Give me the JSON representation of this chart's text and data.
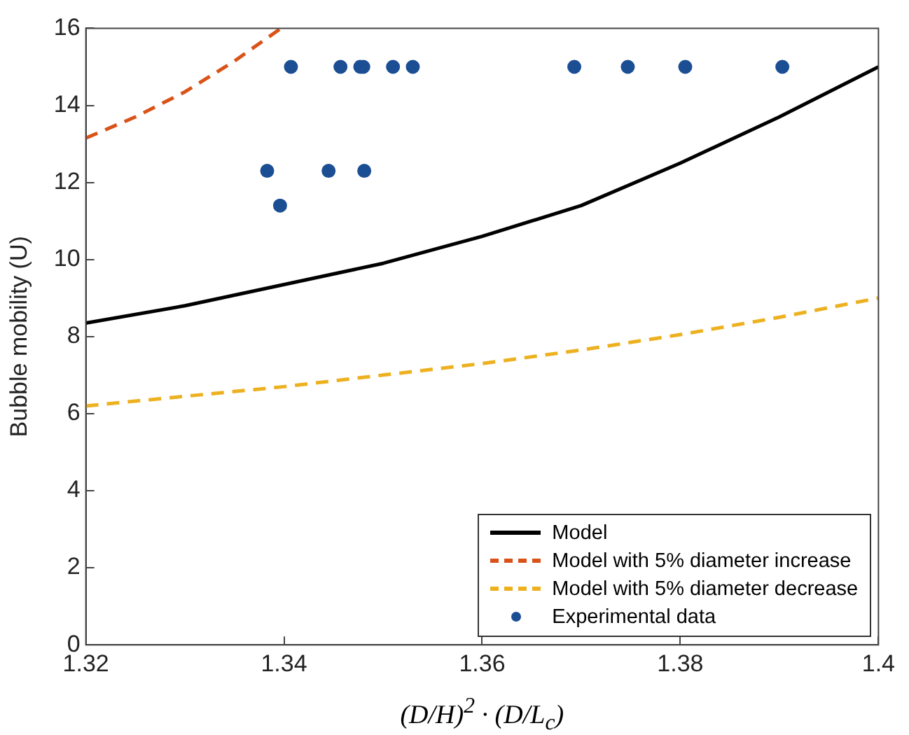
{
  "chart_data": {
    "type": "line",
    "xlabel": "(D/H)$^{2}$ · (D/L$_{c}$)",
    "ylabel": "Bubble mobility (U)",
    "xlim": [
      1.32,
      1.4
    ],
    "xticks": [
      1.32,
      1.34,
      1.36,
      1.38,
      {
        "value": 1.4,
        "label": "1.4"
      }
    ],
    "ylim": [
      0,
      16
    ],
    "yticks": [
      0,
      2,
      4,
      6,
      8,
      10,
      12,
      14,
      16
    ],
    "grid": false,
    "legend": "bottom right",
    "series": [
      {
        "name": "Model",
        "color": "#000000",
        "line_style": "solid",
        "marker": "none",
        "x": [
          1.32,
          1.33,
          1.34,
          1.35,
          1.36,
          1.37,
          1.38,
          1.39,
          1.4
        ],
        "values": [
          8.35,
          8.8,
          9.35,
          9.9,
          10.6,
          11.4,
          12.5,
          13.7,
          15.0
        ]
      },
      {
        "name": "Model with 5% diameter increase",
        "color": "#d95319",
        "line_style": "dashed",
        "marker": "none",
        "x": [
          1.32,
          1.325,
          1.33,
          1.335,
          1.3397
        ],
        "values": [
          13.15,
          13.7,
          14.35,
          15.15,
          16.0
        ]
      },
      {
        "name": "Model with 5% diameter decrease",
        "color": "#edb120",
        "line_style": "dashed",
        "marker": "none",
        "x": [
          1.32,
          1.33,
          1.34,
          1.35,
          1.36,
          1.37,
          1.38,
          1.39,
          1.4
        ],
        "values": [
          6.2,
          6.45,
          6.7,
          7.0,
          7.3,
          7.65,
          8.05,
          8.5,
          9.0
        ]
      },
      {
        "name": "Experimental data",
        "type": "scatter",
        "color": "#1c4e94",
        "marker": "circle",
        "x": [
          1.3407,
          1.3457,
          1.3477,
          1.348,
          1.351,
          1.353,
          1.3693,
          1.3747,
          1.3805,
          1.3903,
          1.3383,
          1.3445,
          1.3481,
          1.3396
        ],
        "values": [
          15,
          15,
          15,
          15,
          15,
          15,
          15,
          15,
          15,
          15,
          12.3,
          12.3,
          12.3,
          11.4
        ]
      }
    ]
  }
}
